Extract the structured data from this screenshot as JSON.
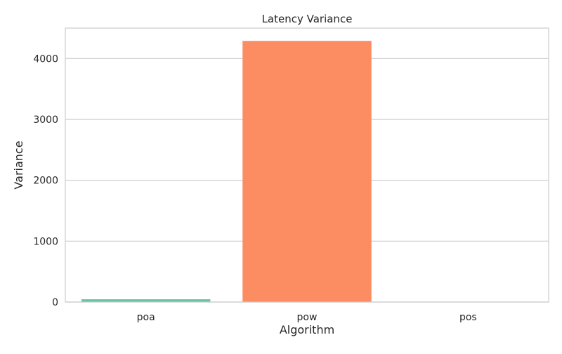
{
  "chart_data": {
    "type": "bar",
    "title": "Latency Variance",
    "xlabel": "Algorithm",
    "ylabel": "Variance",
    "categories": [
      "poa",
      "pow",
      "pos"
    ],
    "values": [
      45,
      4290,
      6
    ],
    "colors": [
      "#66c2a5",
      "#fc8d62",
      "#8da0cb"
    ],
    "ylim": [
      0,
      4500
    ],
    "yticks": [
      0,
      1000,
      2000,
      3000,
      4000
    ],
    "grid": true,
    "legend": "none"
  }
}
